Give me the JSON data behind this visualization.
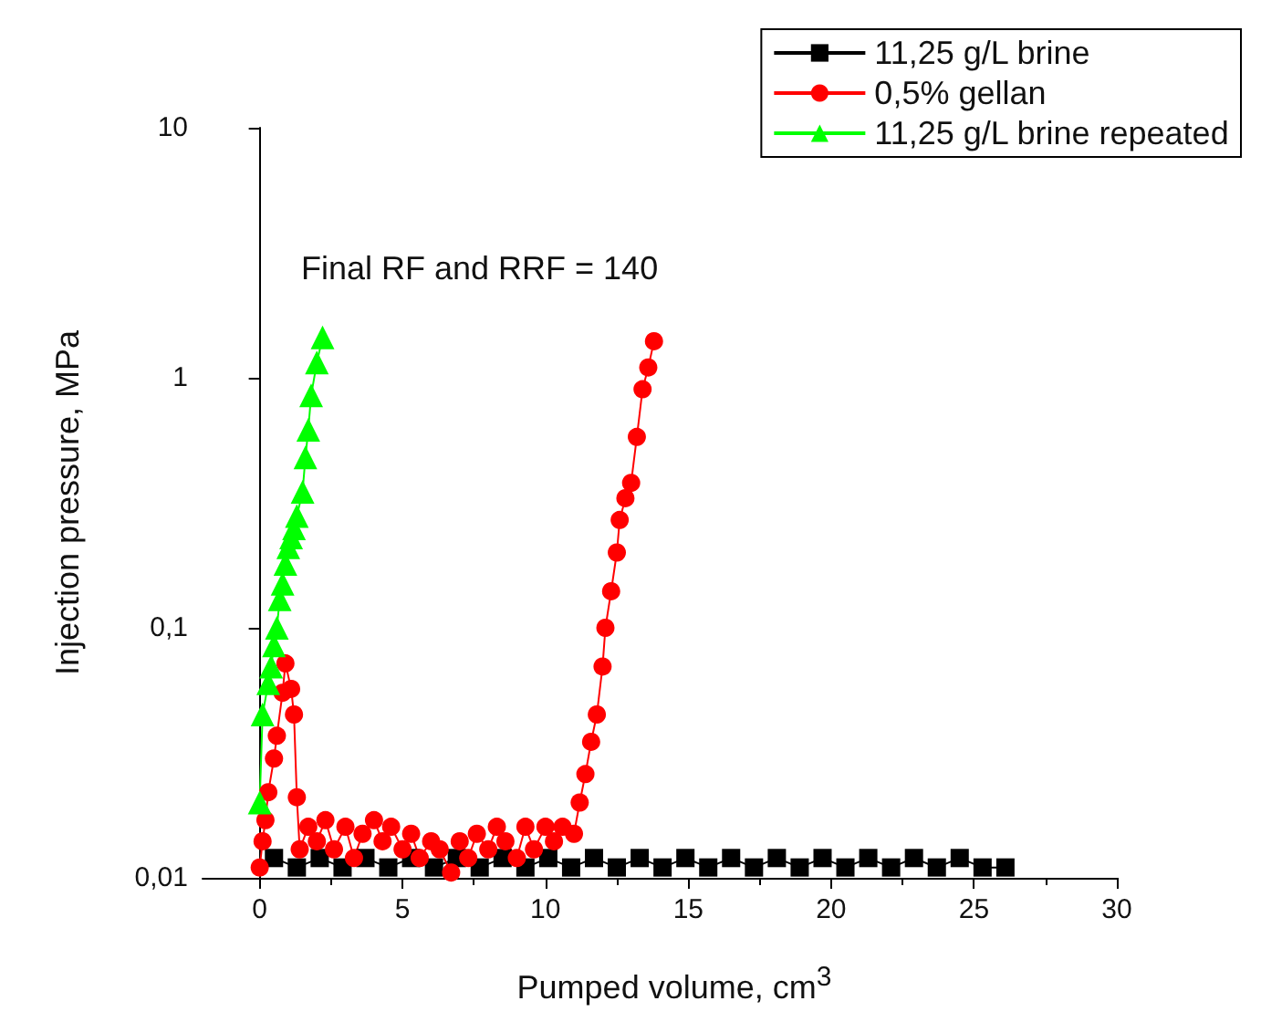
{
  "chart_data": {
    "type": "line",
    "xlabel": "Pumped volume, cm$^{3}$",
    "ylabel": "Injection pressure, MPa",
    "annotations": [
      "Final RF and RRF = 140"
    ],
    "xlim": [
      -2,
      30
    ],
    "xticks": [
      0,
      5,
      10,
      15,
      20,
      25,
      30
    ],
    "ylim": [
      0.01,
      10
    ],
    "yticks": [
      {
        "value": 0.01,
        "label": "0,01"
      },
      {
        "value": 0.1,
        "label": "0,1"
      },
      {
        "value": 1,
        "label": "1"
      },
      {
        "value": 10,
        "label": "10"
      }
    ],
    "log": "y",
    "legend": "top right",
    "series": [
      {
        "name": "11,25 g/L brine",
        "color": "#000000",
        "marker": "square",
        "x": [
          0.5,
          1.3,
          2.1,
          2.9,
          3.7,
          4.5,
          5.3,
          6.1,
          6.9,
          7.7,
          8.5,
          9.3,
          10.1,
          10.9,
          11.7,
          12.5,
          13.3,
          14.1,
          14.9,
          15.7,
          16.5,
          17.3,
          18.1,
          18.9,
          19.7,
          20.5,
          21.3,
          22.1,
          22.9,
          23.7,
          24.5,
          25.3,
          26.1
        ],
        "values": [
          0.012,
          0.011,
          0.012,
          0.011,
          0.012,
          0.011,
          0.012,
          0.011,
          0.012,
          0.011,
          0.012,
          0.011,
          0.012,
          0.011,
          0.012,
          0.011,
          0.012,
          0.011,
          0.012,
          0.011,
          0.012,
          0.011,
          0.012,
          0.011,
          0.012,
          0.011,
          0.012,
          0.011,
          0.012,
          0.011,
          0.012,
          0.011,
          0.011
        ]
      },
      {
        "name": "0,5% gellan",
        "color": "#ff0000",
        "marker": "circle",
        "x": [
          0,
          0.1,
          0.2,
          0.3,
          0.5,
          0.6,
          0.8,
          0.9,
          1.1,
          1.2,
          1.3,
          1.4,
          1.7,
          2,
          2.3,
          2.6,
          3,
          3.3,
          3.6,
          4,
          4.3,
          4.6,
          5,
          5.3,
          5.6,
          6,
          6.3,
          6.7,
          7,
          7.3,
          7.6,
          8,
          8.3,
          8.6,
          9,
          9.3,
          9.6,
          10,
          10.3,
          10.6,
          11,
          11.2,
          11.4,
          11.6,
          11.8,
          12,
          12.1,
          12.3,
          12.5,
          12.6,
          12.8,
          13,
          13.2,
          13.4,
          13.6,
          13.8
        ],
        "values": [
          0.011,
          0.014,
          0.017,
          0.022,
          0.03,
          0.037,
          0.055,
          0.072,
          0.057,
          0.045,
          0.021,
          0.013,
          0.016,
          0.014,
          0.017,
          0.013,
          0.016,
          0.012,
          0.015,
          0.017,
          0.014,
          0.016,
          0.013,
          0.015,
          0.012,
          0.014,
          0.013,
          0.0105,
          0.014,
          0.012,
          0.015,
          0.013,
          0.016,
          0.014,
          0.012,
          0.016,
          0.013,
          0.016,
          0.014,
          0.016,
          0.015,
          0.02,
          0.026,
          0.035,
          0.045,
          0.07,
          0.1,
          0.14,
          0.2,
          0.27,
          0.33,
          0.38,
          0.58,
          0.9,
          1.1,
          1.4
        ]
      },
      {
        "name": "11,25 g/L brine repeated",
        "color": "#00ff00",
        "marker": "triangle",
        "x": [
          0,
          0.1,
          0.3,
          0.4,
          0.5,
          0.6,
          0.7,
          0.8,
          0.9,
          1,
          1.1,
          1.2,
          1.3,
          1.5,
          1.6,
          1.7,
          1.8,
          2,
          2.2
        ],
        "values": [
          0.02,
          0.045,
          0.06,
          0.07,
          0.085,
          0.1,
          0.13,
          0.15,
          0.18,
          0.21,
          0.23,
          0.25,
          0.28,
          0.35,
          0.48,
          0.62,
          0.85,
          1.15,
          1.45
        ]
      }
    ]
  }
}
